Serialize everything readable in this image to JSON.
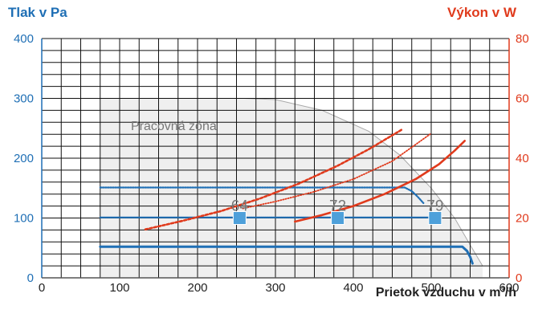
{
  "chart_data": {
    "type": "line",
    "title": "",
    "left_axis_label": "Tlak v Pa",
    "right_axis_label": "Výkon v W",
    "x_axis_label": "Prietok vzduchu v m³/h",
    "x_ticks": [
      "0",
      "100",
      "200",
      "300",
      "400",
      "500",
      "600"
    ],
    "y_left_ticks": [
      "0",
      "100",
      "200",
      "300",
      "400"
    ],
    "y_right_ticks": [
      "0",
      "20",
      "40",
      "60",
      "80"
    ],
    "xlim": [
      0,
      600
    ],
    "ylim_left": [
      0,
      400
    ],
    "ylim_right": [
      0,
      80
    ],
    "grid": true,
    "zone_label": "Pracovná zóna",
    "working_zone": [
      [
        75,
        0
      ],
      [
        75,
        300
      ],
      [
        260,
        300
      ],
      [
        300,
        298
      ],
      [
        360,
        280
      ],
      [
        420,
        245
      ],
      [
        460,
        205
      ],
      [
        500,
        150
      ],
      [
        530,
        100
      ],
      [
        550,
        55
      ],
      [
        566,
        20
      ],
      [
        566,
        0
      ]
    ],
    "pressure_series": [
      {
        "style": "solid-thick",
        "points": [
          [
            75,
            52
          ],
          [
            540,
            52
          ],
          [
            546,
            45
          ],
          [
            550,
            35
          ],
          [
            553,
            24
          ]
        ]
      },
      {
        "style": "dense-dotted",
        "points": [
          [
            75,
            101
          ],
          [
            500,
            101
          ],
          [
            503,
            97
          ],
          [
            507,
            92
          ]
        ]
      },
      {
        "style": "dotted",
        "points": [
          [
            75,
            151
          ],
          [
            466,
            151
          ],
          [
            475,
            145
          ],
          [
            483,
            135
          ],
          [
            490,
            125
          ]
        ]
      }
    ],
    "power_series": [
      {
        "style": "solid",
        "points": [
          [
            325,
            18.8
          ],
          [
            360,
            21
          ],
          [
            400,
            24
          ],
          [
            440,
            28
          ],
          [
            480,
            33
          ],
          [
            510,
            38
          ],
          [
            530,
            42.5
          ],
          [
            543,
            45.8
          ]
        ]
      },
      {
        "style": "dashed",
        "points": [
          [
            133,
            16.2
          ],
          [
            180,
            19
          ],
          [
            230,
            22.3
          ],
          [
            280,
            26.5
          ],
          [
            330,
            31.5
          ],
          [
            380,
            37.5
          ],
          [
            420,
            43
          ],
          [
            462,
            49.5
          ]
        ]
      },
      {
        "style": "dotted",
        "points": [
          [
            258,
            23.2
          ],
          [
            300,
            25.5
          ],
          [
            350,
            28.8
          ],
          [
            400,
            33
          ],
          [
            450,
            39
          ],
          [
            500,
            48.3
          ]
        ]
      }
    ],
    "markers": [
      {
        "x": 254,
        "y": 100,
        "label": "64"
      },
      {
        "x": 380,
        "y": 100,
        "label": "72"
      },
      {
        "x": 505,
        "y": 100,
        "label": "79"
      }
    ],
    "colors": {
      "pressure": "#1f6fb5",
      "power": "#e03a1c",
      "marker": "#4ea0da",
      "zone": "#efefef",
      "grid": "#111111"
    }
  }
}
